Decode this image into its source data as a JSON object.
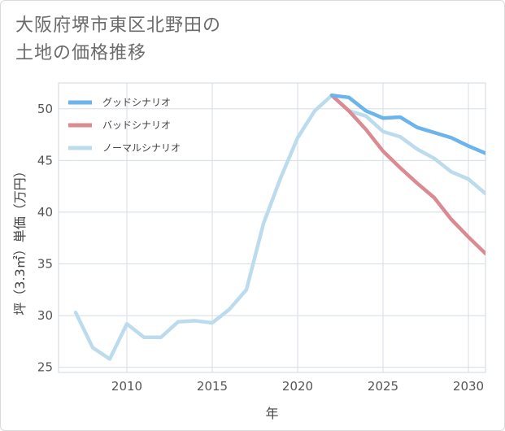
{
  "title_line1": "大阪府堺市東区北野田の",
  "title_line2": "土地の価格推移",
  "chart_data": {
    "type": "line",
    "xlabel": "年",
    "ylabel": "坪（3.3㎡）単価（万円）",
    "xlim": [
      2006,
      2031
    ],
    "ylim": [
      24.5,
      52.5
    ],
    "xticks": [
      2010,
      2015,
      2020,
      2025,
      2030
    ],
    "yticks": [
      25,
      30,
      35,
      40,
      45,
      50
    ],
    "grid": true,
    "legend_position": "top-left",
    "series": [
      {
        "name": "グッドシナリオ",
        "color": "#6cb4ec",
        "x": [
          2022,
          2023,
          2024,
          2025,
          2026,
          2027,
          2028,
          2029,
          2030,
          2031
        ],
        "y": [
          51.3,
          51.1,
          49.8,
          49.1,
          49.2,
          48.2,
          47.7,
          47.2,
          46.4,
          45.7
        ]
      },
      {
        "name": "バッドシナリオ",
        "color": "#dc8a92",
        "x": [
          2022,
          2023,
          2024,
          2025,
          2026,
          2027,
          2028,
          2029,
          2030,
          2031
        ],
        "y": [
          51.3,
          49.8,
          48.0,
          45.9,
          44.3,
          42.8,
          41.4,
          39.3,
          37.6,
          36.0
        ]
      },
      {
        "name": "ノーマルシナリオ",
        "color": "#bcdcee",
        "x": [
          2007,
          2008,
          2009,
          2010,
          2011,
          2012,
          2013,
          2014,
          2015,
          2016,
          2017,
          2018,
          2019,
          2020,
          2021,
          2022,
          2023,
          2024,
          2025,
          2026,
          2027,
          2028,
          2029,
          2030,
          2031
        ],
        "y": [
          30.3,
          26.9,
          25.8,
          29.2,
          27.9,
          27.9,
          29.4,
          29.5,
          29.3,
          30.6,
          32.5,
          38.9,
          43.3,
          47.2,
          49.8,
          51.3,
          49.8,
          49.3,
          47.8,
          47.3,
          46.1,
          45.2,
          43.9,
          43.2,
          41.8
        ]
      }
    ]
  }
}
